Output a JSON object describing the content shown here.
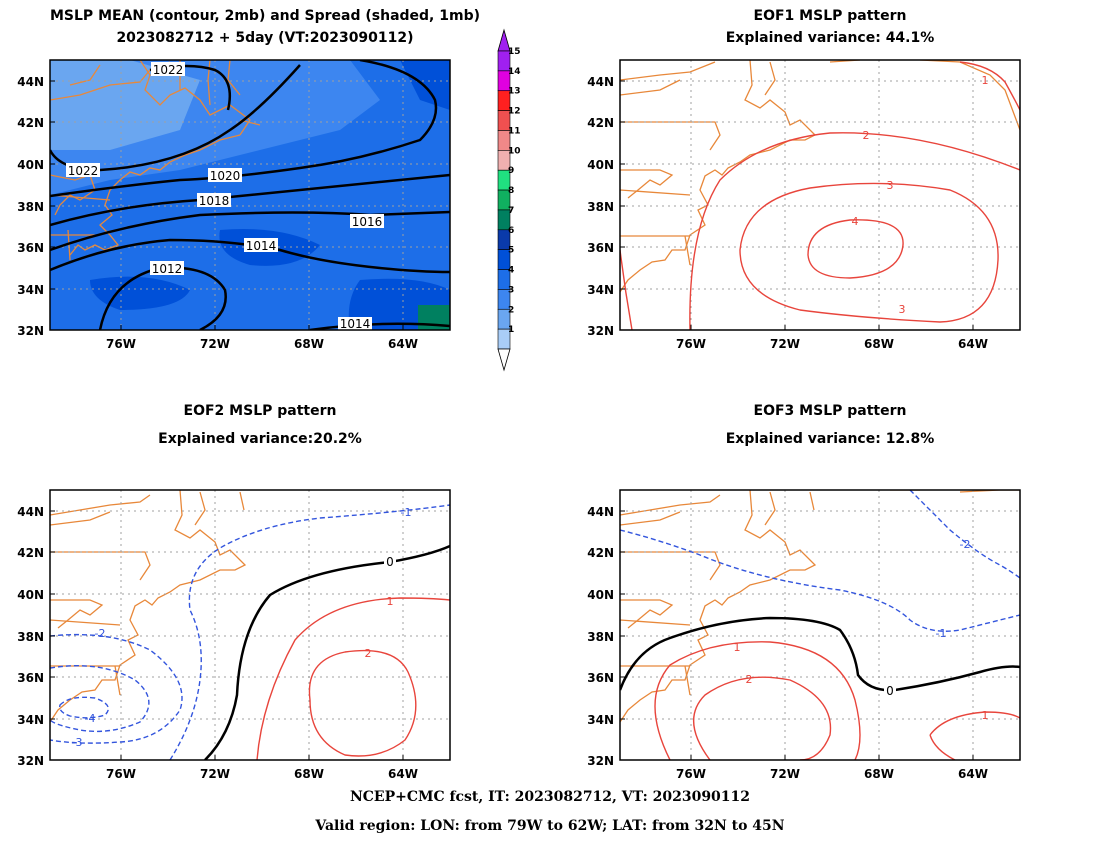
{
  "panels": [
    {
      "title_line1": "MSLP MEAN (contour, 2mb) and Spread (shaded, 1mb)",
      "title_line2": "2023082712 + 5day (VT:2023090112)"
    },
    {
      "title_line1": "EOF1 MSLP pattern",
      "title_line2": "Explained variance: 44.1%"
    },
    {
      "title_line1": "EOF2 MSLP pattern",
      "title_line2": "Explained variance:20.2%"
    },
    {
      "title_line1": "EOF3 MSLP pattern",
      "title_line2": "Explained variance: 12.8%"
    }
  ],
  "axes": {
    "lat_ticks": [
      "44N",
      "42N",
      "40N",
      "38N",
      "36N",
      "34N",
      "32N"
    ],
    "lon_ticks": [
      "76W",
      "72W",
      "68W",
      "64W"
    ]
  },
  "colorbar": {
    "labels": [
      "15",
      "14",
      "13",
      "12",
      "11",
      "10",
      "9",
      "8",
      "7",
      "6",
      "5",
      "4",
      "3",
      "2",
      "1"
    ],
    "colors": [
      "#a020f0",
      "#e000e0",
      "#ff2020",
      "#f05050",
      "#f08888",
      "#f0b0b0",
      "#20e080",
      "#10b060",
      "#008060",
      "#0a3aaa",
      "#0050d8",
      "#1d6ee8",
      "#3d86f0",
      "#6aa6f0",
      "#a9cdf7"
    ]
  },
  "mean_contour_labels": [
    "1022",
    "1022",
    "1020",
    "1018",
    "1016",
    "1014",
    "1012",
    "1014"
  ],
  "eof1_labels": [
    "2",
    "3",
    "4",
    "3",
    "1"
  ],
  "eof2_labels": [
    "0",
    "1",
    "2",
    "-1",
    "-2",
    "-3",
    "-4"
  ],
  "eof3_labels": [
    "0",
    "1",
    "2",
    "-1",
    "-2",
    "1"
  ],
  "colors": {
    "coast": "#e8883a",
    "positive": "#e8453c",
    "negative": "#3355dd",
    "zero": "#000000",
    "grid": "#a0a0a0"
  },
  "footer": {
    "line1": "NCEP+CMC fcst, IT: 2023082712, VT: 2023090112",
    "line2": "Valid region: LON: from 79W to 62W; LAT: from 32N to 45N"
  }
}
